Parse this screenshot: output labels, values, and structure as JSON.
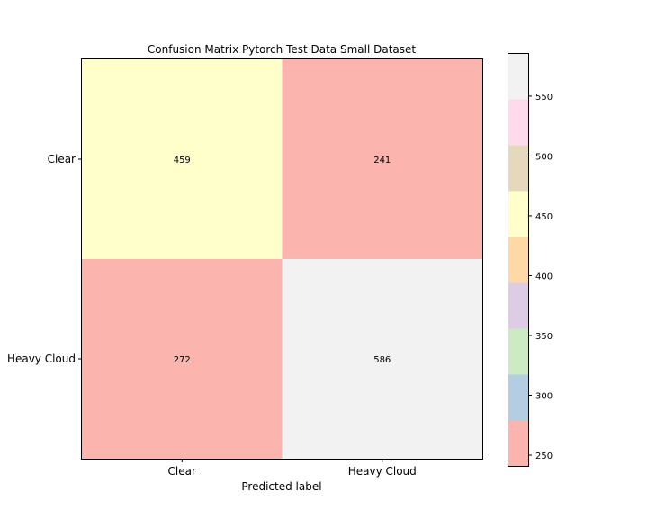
{
  "chart_data": {
    "type": "heatmap",
    "title": "Confusion Matrix Pytorch Test Data Small Dataset",
    "xlabel": "Predicted label",
    "ylabel": "",
    "x_categories": [
      "Clear",
      "Heavy Cloud"
    ],
    "y_categories": [
      "Clear",
      "Heavy Cloud"
    ],
    "values": [
      [
        459,
        241
      ],
      [
        272,
        586
      ]
    ],
    "colorbar": {
      "range": [
        241,
        586
      ],
      "ticks": [
        250,
        300,
        350,
        400,
        450,
        500,
        550
      ],
      "palette": [
        "#fbb4ae",
        "#b3cde3",
        "#ccebc5",
        "#decbe4",
        "#fed9a6",
        "#ffffcc",
        "#e5d8bd",
        "#fddaec",
        "#f2f2f2"
      ]
    },
    "grid": false
  }
}
